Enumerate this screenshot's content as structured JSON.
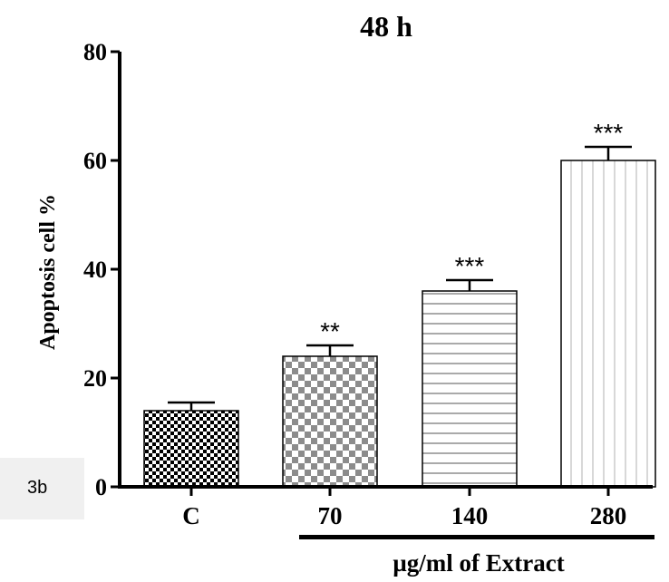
{
  "panel_label": "3b",
  "chart_data": {
    "type": "bar",
    "title": "48 h",
    "ylabel": "Apoptosis cell %",
    "xlabel": "µg/ml of Extract",
    "categories": [
      "C",
      "70",
      "140",
      "280"
    ],
    "values": [
      14,
      24,
      36,
      60
    ],
    "errors": [
      1.5,
      2,
      2,
      2.5
    ],
    "significance": [
      "",
      "**",
      "***",
      "***"
    ],
    "fill_patterns": [
      "checker-black",
      "checker-gray",
      "horizontal-lines",
      "vertical-lines"
    ],
    "ylim": [
      0,
      80
    ],
    "yticks": [
      "0",
      "20",
      "40",
      "60",
      "80"
    ],
    "grid": false,
    "legend": "none",
    "colors": {
      "axis": "#000000",
      "bar_edge": "#000000",
      "checker_gray": "#8c8c8c",
      "vline": "#bdbdbd",
      "hline": "#555555"
    }
  }
}
